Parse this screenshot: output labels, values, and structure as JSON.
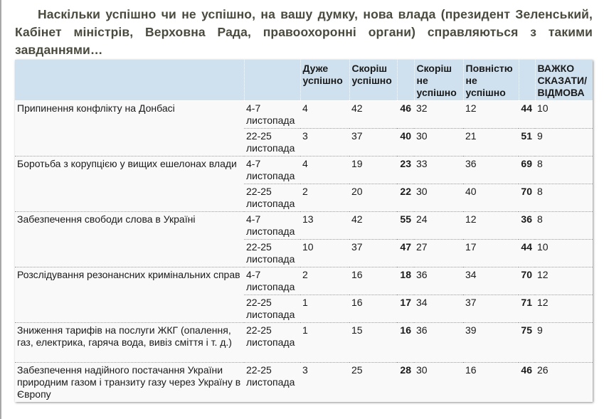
{
  "question": "Наскільки успішно чи не успішно, на вашу думку, нова влада (президент Зеленський, Кабінет міністрів, Верховна Рада, правоохоронні органи) справляються з такими завданнями…",
  "table": {
    "headers": [
      "",
      "",
      "Дуже успішно",
      "Скоріш успішно",
      "",
      "Скоріш не успішно",
      "Повністю не успішно",
      "",
      "ВАЖКО СКАЗАТИ/ ВІДМОВА"
    ],
    "rows": [
      {
        "topic": "Припинення конфлікту на Донбасі",
        "date": "4-7 листопада",
        "very": "4",
        "rather": "42",
        "succ_total": "46",
        "rather_not": "32",
        "not_at_all": "12",
        "fail_total": "44",
        "hard": "10"
      },
      {
        "topic": "",
        "date": "22-25 листопада",
        "very": "3",
        "rather": "37",
        "succ_total": "40",
        "rather_not": "30",
        "not_at_all": "21",
        "fail_total": "51",
        "hard": "9"
      },
      {
        "topic": "Боротьба з корупцією у вищих ешелонах влади",
        "date": "4-7 листопада",
        "very": "4",
        "rather": "19",
        "succ_total": "23",
        "rather_not": "33",
        "not_at_all": "36",
        "fail_total": "69",
        "hard": "8"
      },
      {
        "topic": "",
        "date": "22-25 листопада",
        "very": "2",
        "rather": "20",
        "succ_total": "22",
        "rather_not": "30",
        "not_at_all": "40",
        "fail_total": "70",
        "hard": "8"
      },
      {
        "topic": "Забезпечення свободи слова в Україні",
        "date": "4-7 листопада",
        "very": "13",
        "rather": "42",
        "succ_total": "55",
        "rather_not": "24",
        "not_at_all": "12",
        "fail_total": "36",
        "hard": "8"
      },
      {
        "topic": "",
        "date": "22-25 листопада",
        "very": "10",
        "rather": "37",
        "succ_total": "47",
        "rather_not": "27",
        "not_at_all": "17",
        "fail_total": "44",
        "hard": "10"
      },
      {
        "topic": "Розслідування резонансних кримінальних справ",
        "date": "4-7 листопада",
        "very": "2",
        "rather": "16",
        "succ_total": "18",
        "rather_not": "36",
        "not_at_all": "34",
        "fail_total": "70",
        "hard": "12"
      },
      {
        "topic": "",
        "date": "22-25 листопада",
        "very": "1",
        "rather": "16",
        "succ_total": "17",
        "rather_not": "34",
        "not_at_all": "37",
        "fail_total": "71",
        "hard": "12"
      },
      {
        "topic": "Зниження тарифів на послуги ЖКГ (опалення, газ, електрика, гаряча вода, вивіз сміття і т. д.)",
        "date": "22-25 листопада",
        "very": "1",
        "rather": "15",
        "succ_total": "16",
        "rather_not": "36",
        "not_at_all": "39",
        "fail_total": "75",
        "hard": "9"
      },
      {
        "topic": "Забезпечення надійного постачання України природним газом і транзиту газу через Україну в Європу",
        "date": "22-25 листопада",
        "very": "3",
        "rather": "25",
        "succ_total": "28",
        "rather_not": "30",
        "not_at_all": "16",
        "fail_total": "46",
        "hard": "26"
      }
    ]
  },
  "colors": {
    "header_bg": "#cfe0ee",
    "table_bg": "#f9f9fa",
    "title_text": "#4a4a3e"
  }
}
